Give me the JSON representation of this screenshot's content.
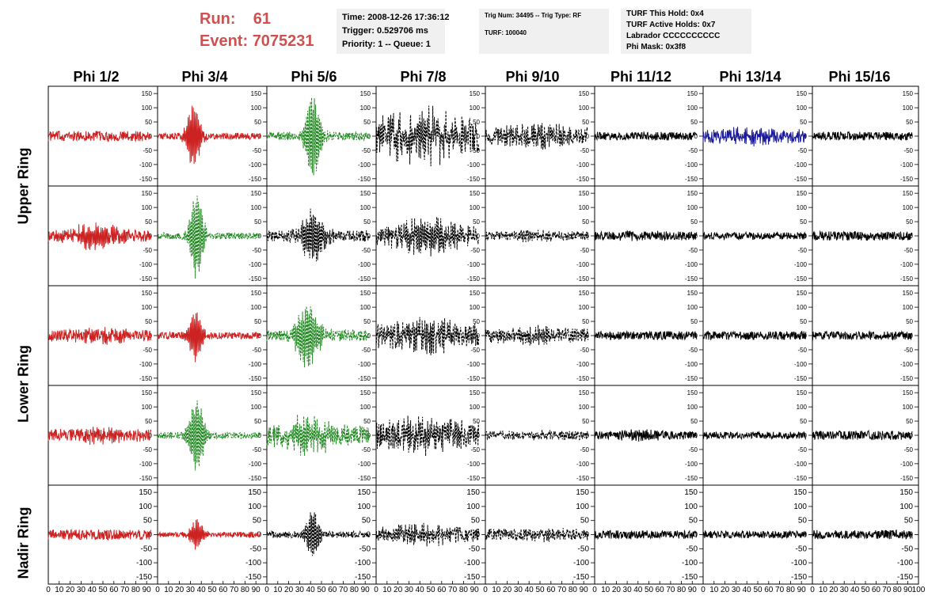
{
  "header": {
    "run_label": "Run:",
    "run_value": "61",
    "event_label": "Event:",
    "event_value": "7075231"
  },
  "info_boxes": {
    "time": "Time: 2008-12-26 17:36:12",
    "trigger": "Trigger: 0.529706 ms",
    "priority": "Priority: 1 -- Queue: 1",
    "trig_num": "Trig Num: 34495 -- Trig Type: RF",
    "turf": "TURF: 100040",
    "turf_this_hold": "TURF This Hold: 0x4",
    "turf_active_holds": "TURF Active Holds: 0x7",
    "labrador": "Labrador CCCCCCCCCC",
    "phi_mask": "Phi Mask: 0x3f8"
  },
  "columns": [
    "Phi 1/2",
    "Phi 3/4",
    "Phi 5/6",
    "Phi 7/8",
    "Phi 9/10",
    "Phi 11/12",
    "Phi 13/14",
    "Phi 15/16"
  ],
  "rings": [
    "Upper Ring",
    "Lower Ring",
    "Nadir Ring"
  ],
  "colors": {
    "red": "#cc2222",
    "green": "#228822",
    "blue": "#1a1a99",
    "black": "#000000"
  },
  "chart_data": {
    "type": "line",
    "xlim": [
      0,
      100
    ],
    "ylim": [
      -170,
      170
    ],
    "y_ticks": [
      -150,
      -100,
      -50,
      0,
      50,
      100,
      150
    ],
    "x_ticks": [
      0,
      10,
      20,
      30,
      40,
      50,
      60,
      70,
      80,
      90,
      100
    ],
    "x_tick_labels": [
      "0",
      "10",
      "20",
      "30",
      "40",
      "50",
      "60",
      "70",
      "80",
      "90",
      "100"
    ],
    "y_tick_labels": [
      "-150",
      "-100",
      "-50",
      "0",
      "50",
      "100",
      "150"
    ],
    "panel_rows": 5,
    "panel_cols": 8,
    "waveforms": [
      [
        {
          "color": "red",
          "dashed": false,
          "amp": 18,
          "burst": 0,
          "center": 0.5,
          "width": 0.3
        },
        {
          "color": "red",
          "dashed": false,
          "amp": 12,
          "burst": 110,
          "center": 0.35,
          "width": 0.07
        },
        {
          "color": "green",
          "dashed": true,
          "amp": 15,
          "burst": 145,
          "center": 0.45,
          "width": 0.08
        },
        {
          "color": "black",
          "dashed": true,
          "amp": 60,
          "burst": 60,
          "center": 0.45,
          "width": 0.35
        },
        {
          "color": "black",
          "dashed": true,
          "amp": 30,
          "burst": 25,
          "center": 0.5,
          "width": 0.35
        },
        {
          "color": "black",
          "dashed": false,
          "amp": 15,
          "burst": 0,
          "center": 0.5,
          "width": 0.3
        },
        {
          "color": "blue",
          "dashed": false,
          "amp": 22,
          "burst": 15,
          "center": 0.5,
          "width": 0.35
        },
        {
          "color": "black",
          "dashed": false,
          "amp": 15,
          "burst": 0,
          "center": 0.5,
          "width": 0.3
        }
      ],
      [
        {
          "color": "red",
          "dashed": false,
          "amp": 20,
          "burst": 35,
          "center": 0.45,
          "width": 0.25
        },
        {
          "color": "green",
          "dashed": true,
          "amp": 12,
          "burst": 145,
          "center": 0.38,
          "width": 0.07
        },
        {
          "color": "black",
          "dashed": true,
          "amp": 20,
          "burst": 85,
          "center": 0.45,
          "width": 0.12
        },
        {
          "color": "black",
          "dashed": true,
          "amp": 30,
          "burst": 45,
          "center": 0.5,
          "width": 0.35
        },
        {
          "color": "black",
          "dashed": true,
          "amp": 15,
          "burst": 10,
          "center": 0.5,
          "width": 0.3
        },
        {
          "color": "black",
          "dashed": false,
          "amp": 15,
          "burst": 5,
          "center": 0.5,
          "width": 0.3
        },
        {
          "color": "black",
          "dashed": false,
          "amp": 13,
          "burst": 0,
          "center": 0.5,
          "width": 0.3
        },
        {
          "color": "black",
          "dashed": false,
          "amp": 16,
          "burst": 0,
          "center": 0.5,
          "width": 0.3
        }
      ],
      [
        {
          "color": "red",
          "dashed": false,
          "amp": 20,
          "burst": 15,
          "center": 0.5,
          "width": 0.3
        },
        {
          "color": "red",
          "dashed": false,
          "amp": 12,
          "burst": 85,
          "center": 0.37,
          "width": 0.07
        },
        {
          "color": "green",
          "dashed": true,
          "amp": 20,
          "burst": 105,
          "center": 0.4,
          "width": 0.12
        },
        {
          "color": "black",
          "dashed": true,
          "amp": 40,
          "burst": 30,
          "center": 0.5,
          "width": 0.35
        },
        {
          "color": "black",
          "dashed": true,
          "amp": 25,
          "burst": 15,
          "center": 0.5,
          "width": 0.3
        },
        {
          "color": "black",
          "dashed": false,
          "amp": 15,
          "burst": 0,
          "center": 0.5,
          "width": 0.3
        },
        {
          "color": "black",
          "dashed": false,
          "amp": 15,
          "burst": 0,
          "center": 0.5,
          "width": 0.3
        },
        {
          "color": "black",
          "dashed": false,
          "amp": 15,
          "burst": 0,
          "center": 0.5,
          "width": 0.3
        }
      ],
      [
        {
          "color": "red",
          "dashed": false,
          "amp": 20,
          "burst": 15,
          "center": 0.5,
          "width": 0.3
        },
        {
          "color": "green",
          "dashed": true,
          "amp": 12,
          "burst": 120,
          "center": 0.38,
          "width": 0.08
        },
        {
          "color": "green",
          "dashed": true,
          "amp": 35,
          "burst": 50,
          "center": 0.4,
          "width": 0.25
        },
        {
          "color": "black",
          "dashed": true,
          "amp": 45,
          "burst": 35,
          "center": 0.5,
          "width": 0.35
        },
        {
          "color": "black",
          "dashed": true,
          "amp": 15,
          "burst": 5,
          "center": 0.5,
          "width": 0.3
        },
        {
          "color": "black",
          "dashed": false,
          "amp": 15,
          "burst": 10,
          "center": 0.45,
          "width": 0.2
        },
        {
          "color": "black",
          "dashed": false,
          "amp": 13,
          "burst": 0,
          "center": 0.5,
          "width": 0.3
        },
        {
          "color": "black",
          "dashed": false,
          "amp": 16,
          "burst": 0,
          "center": 0.5,
          "width": 0.3
        }
      ],
      [
        {
          "color": "red",
          "dashed": false,
          "amp": 18,
          "burst": 0,
          "center": 0.5,
          "width": 0.3
        },
        {
          "color": "red",
          "dashed": false,
          "amp": 10,
          "burst": 50,
          "center": 0.38,
          "width": 0.07
        },
        {
          "color": "black",
          "dashed": true,
          "amp": 12,
          "burst": 80,
          "center": 0.45,
          "width": 0.07
        },
        {
          "color": "black",
          "dashed": true,
          "amp": 25,
          "burst": 25,
          "center": 0.45,
          "width": 0.3
        },
        {
          "color": "black",
          "dashed": true,
          "amp": 20,
          "burst": 10,
          "center": 0.5,
          "width": 0.3
        },
        {
          "color": "black",
          "dashed": false,
          "amp": 15,
          "burst": 0,
          "center": 0.5,
          "width": 0.3
        },
        {
          "color": "black",
          "dashed": false,
          "amp": 13,
          "burst": 0,
          "center": 0.5,
          "width": 0.3
        },
        {
          "color": "black",
          "dashed": false,
          "amp": 16,
          "burst": 0,
          "center": 0.5,
          "width": 0.3
        }
      ]
    ]
  }
}
